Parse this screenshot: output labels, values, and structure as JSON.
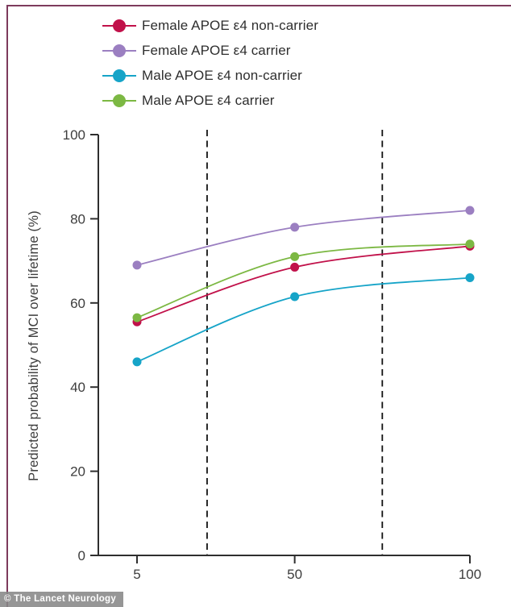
{
  "figure": {
    "credit_badge": "© The Lancet Neurology",
    "frame_color": "#7d3b5c",
    "badge_bg": "#888888"
  },
  "chart_data": {
    "type": "line",
    "title": "",
    "xlabel": "",
    "ylabel": "Predicted probability of MCI over lifetime (%)",
    "x": [
      5,
      50,
      100
    ],
    "x_axis": {
      "ticks": [
        "5",
        "50",
        "100"
      ],
      "tick_values": [
        5,
        50,
        100
      ],
      "range": [
        5,
        100
      ]
    },
    "y_axis": {
      "ticks": [
        "0",
        "20",
        "40",
        "60",
        "80",
        "100"
      ],
      "tick_values": [
        0,
        20,
        40,
        60,
        80,
        100
      ],
      "range": [
        0,
        100
      ]
    },
    "grid": false,
    "legend_position": "top-left",
    "axis_color": "#2e2e2e",
    "reference_lines": {
      "style": "vertical-dashed",
      "x_values": [
        25,
        75
      ],
      "color": "#111111"
    },
    "series": [
      {
        "name": "Female APOE ε4 non-carrier",
        "color": "#c1114a",
        "values": [
          55.5,
          68.5,
          73.5
        ]
      },
      {
        "name": "Female APOE ε4 carrier",
        "color": "#9b7fc1",
        "values": [
          69,
          78,
          82
        ]
      },
      {
        "name": "Male APOE ε4 non-carrier",
        "color": "#16a4c8",
        "values": [
          46,
          61.5,
          66
        ]
      },
      {
        "name": "Male APOE ε4 carrier",
        "color": "#7cb843",
        "values": [
          56.5,
          71,
          74
        ]
      }
    ]
  }
}
